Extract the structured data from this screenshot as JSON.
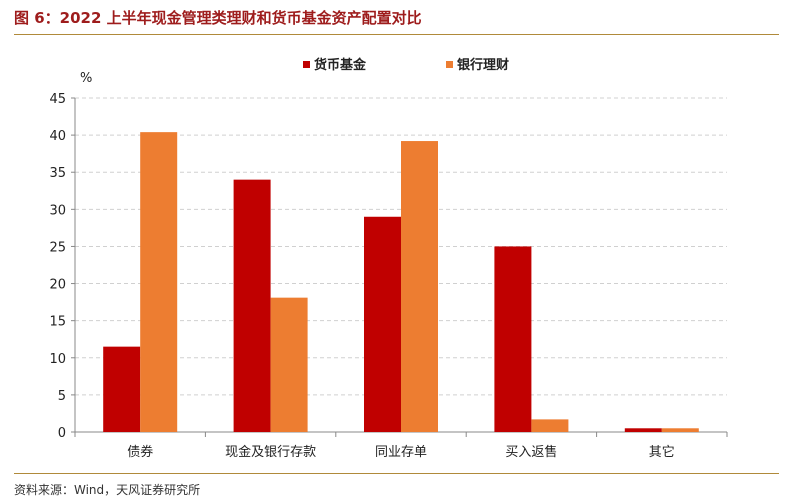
{
  "figure": {
    "title": "图 6：2022 上半年现金管理类理财和货币基金资产配置对比",
    "source": "资料来源：Wind，天风证券研究所"
  },
  "colors": {
    "series_1": "#c00000",
    "series_2": "#ed7d31",
    "accent_title": "#9e1c1c",
    "rule": "#b08a3a"
  },
  "chart_data": {
    "type": "bar",
    "categories": [
      "债券",
      "现金及银行存款",
      "同业存单",
      "买入返售",
      "其它"
    ],
    "series": [
      {
        "name": "货币基金",
        "values": [
          11.5,
          34.0,
          29.0,
          25.0,
          0.5
        ]
      },
      {
        "name": "银行理财",
        "values": [
          40.4,
          18.1,
          39.2,
          1.7,
          0.5
        ]
      }
    ],
    "ylabel": "%",
    "ylim": [
      0,
      45
    ],
    "yticks": [
      0,
      5,
      10,
      15,
      20,
      25,
      30,
      35,
      40,
      45
    ],
    "grid": true,
    "legend_position": "top-center"
  }
}
